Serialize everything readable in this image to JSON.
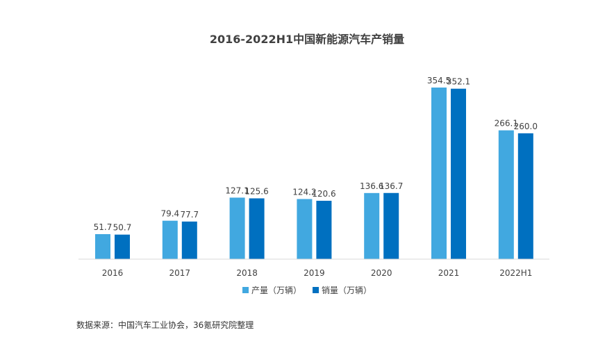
{
  "chart_data": {
    "type": "bar",
    "title": "2016-2022H1中国新能源汽车产销量",
    "categories": [
      "2016",
      "2017",
      "2018",
      "2019",
      "2020",
      "2021",
      "2022H1"
    ],
    "series": [
      {
        "name": "产量（万辆）",
        "color": "#41A8E0",
        "values": [
          51.7,
          79.4,
          127.1,
          124.2,
          136.6,
          354.5,
          266.1
        ],
        "labels": [
          "51.7",
          "79.4",
          "127.1",
          "124.2",
          "136.6",
          "354.5",
          "266.1"
        ]
      },
      {
        "name": "销量（万辆）",
        "color": "#0070C0",
        "values": [
          50.7,
          77.7,
          125.6,
          120.6,
          136.7,
          352.1,
          260.0
        ],
        "labels": [
          "50.7",
          "77.7",
          "125.6",
          "120.6",
          "136.7",
          "352.1",
          "260.0"
        ]
      }
    ],
    "ylim": [
      0,
      354.5
    ],
    "grid": false,
    "legend_position": "bottom"
  },
  "source_note": "数据来源：中国汽车工业协会，36氪研究院整理"
}
